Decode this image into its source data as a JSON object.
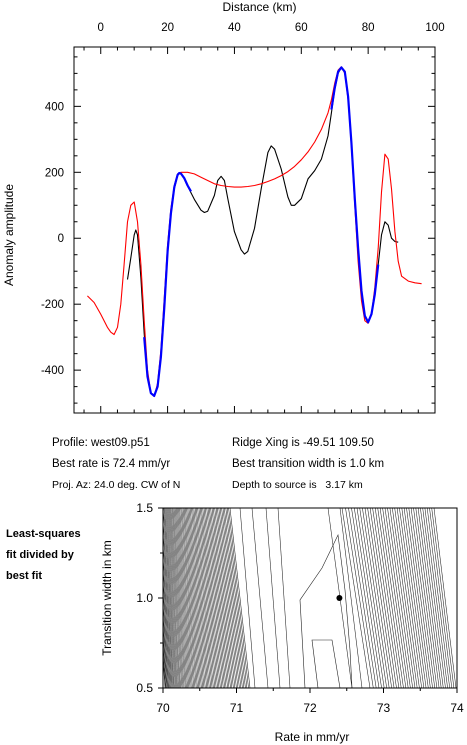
{
  "chart_data": [
    {
      "type": "line",
      "xlabel": "Distance (km)",
      "ylabel": "Anomaly amplitude",
      "xlim": [
        -8,
        100
      ],
      "ylim": [
        -530,
        580
      ],
      "x_ticks": [
        0,
        20,
        40,
        60,
        80,
        100
      ],
      "y_ticks": [
        -400,
        -200,
        0,
        200,
        400
      ],
      "axes": {
        "x_tick_labels": "top",
        "y_tick_labels": "left"
      },
      "series": [
        {
          "color": "#000000",
          "points": [
            [
              8,
              -125
            ],
            [
              9,
              -60
            ],
            [
              10,
              10
            ],
            [
              10.5,
              25
            ],
            [
              11,
              10
            ],
            [
              12,
              -120
            ],
            [
              13,
              -290
            ],
            [
              14,
              -420
            ],
            [
              15,
              -470
            ],
            [
              16,
              -478
            ],
            [
              17,
              -450
            ],
            [
              18,
              -360
            ],
            [
              19,
              -200
            ],
            [
              20,
              -40
            ],
            [
              21,
              70
            ],
            [
              22,
              150
            ],
            [
              23,
              190
            ],
            [
              23.5,
              198
            ],
            [
              24,
              195
            ],
            [
              25,
              180
            ],
            [
              26,
              158
            ],
            [
              28,
              118
            ],
            [
              30,
              85
            ],
            [
              31,
              78
            ],
            [
              32,
              82
            ],
            [
              34,
              130
            ],
            [
              35,
              175
            ],
            [
              36,
              188
            ],
            [
              37,
              175
            ],
            [
              38,
              120
            ],
            [
              40,
              20
            ],
            [
              42,
              -35
            ],
            [
              43,
              -48
            ],
            [
              44,
              -40
            ],
            [
              46,
              30
            ],
            [
              48,
              150
            ],
            [
              50,
              260
            ],
            [
              51,
              280
            ],
            [
              52,
              270
            ],
            [
              54,
              210
            ],
            [
              56,
              125
            ],
            [
              57,
              100
            ],
            [
              58,
              100
            ],
            [
              60,
              120
            ],
            [
              62,
              180
            ],
            [
              64,
              205
            ],
            [
              66,
              240
            ],
            [
              68,
              310
            ],
            [
              69,
              380
            ],
            [
              70,
              450
            ],
            [
              71,
              500
            ],
            [
              72,
              518
            ],
            [
              73,
              505
            ],
            [
              74,
              430
            ],
            [
              75,
              290
            ],
            [
              76,
              120
            ],
            [
              77,
              -30
            ],
            [
              78,
              -160
            ],
            [
              79,
              -235
            ],
            [
              80,
              -255
            ],
            [
              81,
              -230
            ],
            [
              82,
              -170
            ],
            [
              83,
              -80
            ],
            [
              84,
              10
            ],
            [
              85,
              50
            ],
            [
              86,
              40
            ],
            [
              87,
              0
            ],
            [
              88,
              -10
            ],
            [
              89,
              -12
            ]
          ]
        },
        {
          "color": "#ff0000",
          "points": [
            [
              -4,
              -175
            ],
            [
              -2,
              -195
            ],
            [
              0,
              -230
            ],
            [
              2,
              -270
            ],
            [
              3,
              -285
            ],
            [
              4,
              -292
            ],
            [
              5,
              -270
            ],
            [
              6,
              -200
            ],
            [
              7,
              -80
            ],
            [
              8,
              50
            ],
            [
              9,
              100
            ],
            [
              10,
              110
            ],
            [
              11,
              50
            ],
            [
              12,
              -80
            ],
            [
              13,
              -250
            ],
            [
              14,
              -400
            ],
            [
              15,
              -470
            ],
            [
              16,
              -480
            ],
            [
              17,
              -440
            ],
            [
              18,
              -340
            ],
            [
              19,
              -180
            ],
            [
              20,
              -20
            ],
            [
              21,
              90
            ],
            [
              22,
              160
            ],
            [
              23,
              195
            ],
            [
              24,
              200
            ],
            [
              26,
              200
            ],
            [
              28,
              195
            ],
            [
              30,
              185
            ],
            [
              32,
              175
            ],
            [
              34,
              165
            ],
            [
              36,
              160
            ],
            [
              38,
              157
            ],
            [
              40,
              155
            ],
            [
              42,
              155
            ],
            [
              44,
              157
            ],
            [
              46,
              160
            ],
            [
              48,
              165
            ],
            [
              50,
              172
            ],
            [
              52,
              180
            ],
            [
              54,
              190
            ],
            [
              56,
              202
            ],
            [
              58,
              218
            ],
            [
              60,
              238
            ],
            [
              62,
              262
            ],
            [
              64,
              292
            ],
            [
              66,
              330
            ],
            [
              68,
              380
            ],
            [
              69,
              420
            ],
            [
              70,
              470
            ],
            [
              71,
              510
            ],
            [
              72,
              520
            ],
            [
              73,
              500
            ],
            [
              74,
              420
            ],
            [
              75,
              280
            ],
            [
              76,
              100
            ],
            [
              77,
              -70
            ],
            [
              78,
              -190
            ],
            [
              79,
              -250
            ],
            [
              80,
              -258
            ],
            [
              81,
              -230
            ],
            [
              82,
              -150
            ],
            [
              83,
              -30
            ],
            [
              84,
              140
            ],
            [
              85,
              255
            ],
            [
              86,
              240
            ],
            [
              87,
              150
            ],
            [
              88,
              20
            ],
            [
              89,
              -70
            ],
            [
              90,
              -115
            ],
            [
              92,
              -130
            ],
            [
              94,
              -135
            ],
            [
              96,
              -138
            ]
          ]
        },
        {
          "color": "#0000ff",
          "points": [
            [
              13,
              -300
            ],
            [
              14,
              -420
            ],
            [
              15,
              -470
            ],
            [
              16,
              -478
            ],
            [
              17,
              -450
            ],
            [
              18,
              -360
            ],
            [
              19,
              -210
            ],
            [
              20,
              -40
            ],
            [
              21,
              75
            ],
            [
              22,
              155
            ],
            [
              23,
              192
            ],
            [
              23.5,
              198
            ],
            [
              24,
              196
            ],
            [
              25,
              182
            ],
            [
              26,
              160
            ],
            [
              27,
              142
            ]
          ]
        },
        {
          "color": "#0000ff",
          "points": [
            [
              69,
              390
            ],
            [
              70,
              455
            ],
            [
              71,
              505
            ],
            [
              72,
              518
            ],
            [
              73,
              505
            ],
            [
              74,
              430
            ],
            [
              75,
              290
            ],
            [
              76,
              120
            ],
            [
              77,
              -30
            ],
            [
              78,
              -160
            ],
            [
              79,
              -235
            ],
            [
              80,
              -255
            ],
            [
              81,
              -230
            ],
            [
              82,
              -170
            ],
            [
              83,
              -80
            ]
          ]
        }
      ]
    },
    {
      "type": "contour",
      "xlabel": "Rate in mm/yr",
      "ylabel": "Transition width in km",
      "xlim": [
        70,
        74
      ],
      "ylim": [
        0.5,
        1.5
      ],
      "x_ticks": [
        70,
        71,
        72,
        73,
        74
      ],
      "y_ticks": [
        0.5,
        1.0,
        1.5
      ],
      "best_fit_point": [
        72.4,
        1.0
      ]
    }
  ],
  "info": {
    "profile": "Profile: west09.p51",
    "best_rate": "Best rate is 72.4 mm/yr",
    "proj_az": "Proj. Az: 24.0 deg. CW of N",
    "ridge_xing": "Ridge Xing is -49.51 109.50",
    "transition": "Best transition width is 1.0 km",
    "depth": "Depth to source is   3.17 km"
  },
  "side_label": [
    "Least-squares",
    "fit divided by",
    "best fit"
  ]
}
